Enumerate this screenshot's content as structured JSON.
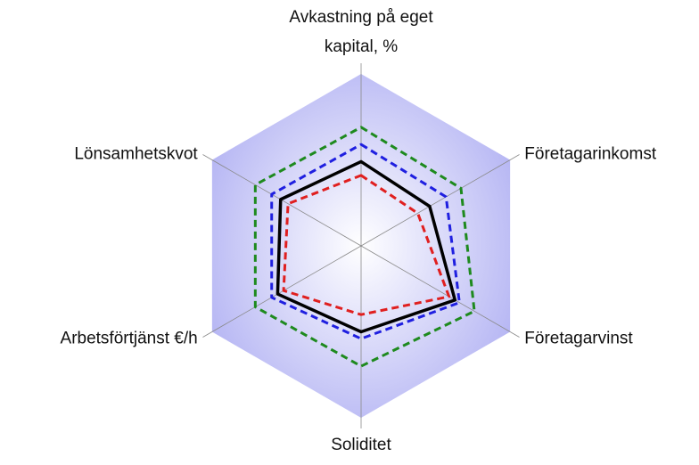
{
  "chart_data": {
    "type": "radar",
    "categories": [
      "Avkastning på eget kapital, %",
      "Företagarinkomst",
      "Företagarvinst",
      "Soliditet",
      "Arbetsförtjänst €/h",
      "Lönsamhetskvot"
    ],
    "ylim": [
      0,
      100
    ],
    "series": [
      {
        "color": "#1e8a1e",
        "dashed": true,
        "values": [
          69,
          67,
          76,
          70,
          71,
          71
        ]
      },
      {
        "color": "#1f1fe0",
        "dashed": true,
        "values": [
          59,
          57,
          66,
          54,
          60,
          60
        ]
      },
      {
        "color": "#000000",
        "dashed": false,
        "values": [
          49,
          46,
          63,
          50,
          56,
          54
        ]
      },
      {
        "color": "#e01f1f",
        "dashed": true,
        "values": [
          41,
          38,
          59,
          40,
          52,
          49
        ]
      }
    ]
  }
}
